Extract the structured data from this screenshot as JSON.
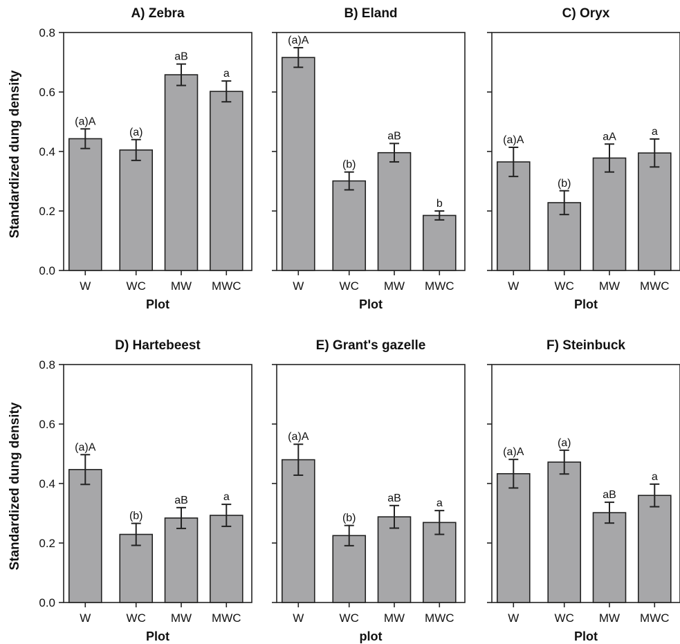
{
  "chart_data": [
    {
      "type": "bar",
      "title": "A) Zebra",
      "xlabel": "Plot",
      "ylabel": "Standardized dung density",
      "categories": [
        "W",
        "WC",
        "MW",
        "MWC"
      ],
      "values": [
        0.443,
        0.405,
        0.658,
        0.602
      ],
      "errors": [
        0.033,
        0.035,
        0.036,
        0.035
      ],
      "labels": [
        "(a)A",
        "(a)",
        "aB",
        "a"
      ],
      "ylim": [
        0,
        0.8
      ],
      "yticks": [
        "0.0",
        "0.2",
        "0.4",
        "0.6",
        "0.8"
      ],
      "bar_color": "#a7a7a9"
    },
    {
      "type": "bar",
      "title": "B) Eland",
      "xlabel": "Plot",
      "ylabel": "",
      "categories": [
        "W",
        "WC",
        "MW",
        "MWC"
      ],
      "values": [
        0.716,
        0.301,
        0.396,
        0.185
      ],
      "errors": [
        0.033,
        0.03,
        0.031,
        0.015
      ],
      "labels": [
        "(a)A",
        "(b)",
        "aB",
        "b"
      ],
      "ylim": [
        0,
        0.8
      ],
      "yticks": [],
      "bar_color": "#a7a7a9"
    },
    {
      "type": "bar",
      "title": "C) Oryx",
      "xlabel": "Plot",
      "ylabel": "",
      "categories": [
        "W",
        "WC",
        "MW",
        "MWC"
      ],
      "values": [
        0.365,
        0.228,
        0.378,
        0.395
      ],
      "errors": [
        0.049,
        0.04,
        0.047,
        0.047
      ],
      "labels": [
        "(a)A",
        "(b)",
        "aA",
        "a"
      ],
      "ylim": [
        0,
        0.8
      ],
      "yticks": [],
      "bar_color": "#a7a7a9"
    },
    {
      "type": "bar",
      "title": "D) Hartebeest",
      "xlabel": "Plot",
      "ylabel": "Standardized dung density",
      "categories": [
        "W",
        "WC",
        "MW",
        "MWC"
      ],
      "values": [
        0.447,
        0.229,
        0.284,
        0.293
      ],
      "errors": [
        0.05,
        0.037,
        0.035,
        0.037
      ],
      "labels": [
        "(a)A",
        "(b)",
        "aB",
        "a"
      ],
      "ylim": [
        0,
        0.8
      ],
      "yticks": [
        "0.0",
        "0.2",
        "0.4",
        "0.6",
        "0.8"
      ],
      "bar_color": "#a7a7a9"
    },
    {
      "type": "bar",
      "title": "E) Grant's gazelle",
      "xlabel": "plot",
      "ylabel": "",
      "categories": [
        "W",
        "WC",
        "MW",
        "MWC"
      ],
      "values": [
        0.48,
        0.225,
        0.288,
        0.269
      ],
      "errors": [
        0.052,
        0.034,
        0.038,
        0.04
      ],
      "labels": [
        "(a)A",
        "(b)",
        "aB",
        "a"
      ],
      "ylim": [
        0,
        0.8
      ],
      "yticks": [],
      "bar_color": "#a7a7a9"
    },
    {
      "type": "bar",
      "title": "F) Steinbuck",
      "xlabel": "Plot",
      "ylabel": "",
      "categories": [
        "W",
        "WC",
        "MW",
        "MWC"
      ],
      "values": [
        0.433,
        0.472,
        0.302,
        0.36
      ],
      "errors": [
        0.048,
        0.04,
        0.035,
        0.038
      ],
      "labels": [
        "(a)A",
        "(a)",
        "aB",
        "a"
      ],
      "ylim": [
        0,
        0.8
      ],
      "yticks": [],
      "bar_color": "#a7a7a9"
    }
  ]
}
